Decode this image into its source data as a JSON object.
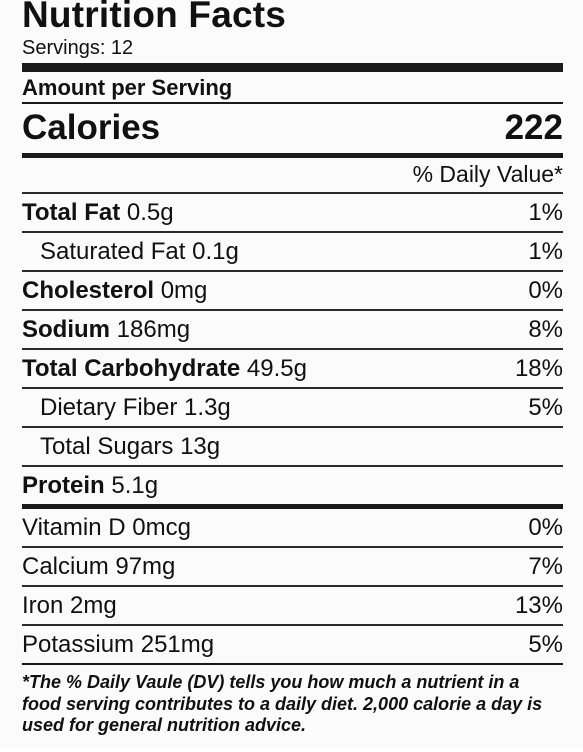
{
  "label": {
    "title": "Nutrition Facts",
    "servings": "Servings: 12",
    "amount_per_serving": "Amount per Serving",
    "calories_label": "Calories",
    "calories_value": "222",
    "daily_value_header": "% Daily Value*"
  },
  "nutrients": [
    {
      "name": "Total Fat",
      "amount": "0.5g",
      "dv": "1%"
    },
    {
      "name": "Saturated Fat",
      "amount": "0.1g",
      "dv": "1%"
    },
    {
      "name": "Cholesterol",
      "amount": "0mg",
      "dv": "0%"
    },
    {
      "name": "Sodium",
      "amount": "186mg",
      "dv": "8%"
    },
    {
      "name": "Total Carbohydrate",
      "amount": "49.5g",
      "dv": "18%"
    },
    {
      "name": "Dietary Fiber",
      "amount": "1.3g",
      "dv": "5%"
    },
    {
      "name": "Total Sugars",
      "amount": "13g",
      "dv": ""
    },
    {
      "name": "Protein",
      "amount": "5.1g",
      "dv": ""
    }
  ],
  "vitamins": [
    {
      "name": "Vitamin D",
      "amount": "0mcg",
      "dv": "0%"
    },
    {
      "name": "Calcium",
      "amount": "97mg",
      "dv": "7%"
    },
    {
      "name": "Iron",
      "amount": "2mg",
      "dv": "13%"
    },
    {
      "name": "Potassium",
      "amount": "251mg",
      "dv": "5%"
    }
  ],
  "footnote": "*The % Daily Vaule (DV) tells you how much a nutrient in a food serving contributes to a daily diet. 2,000 calorie a day is used for general nutrition advice."
}
